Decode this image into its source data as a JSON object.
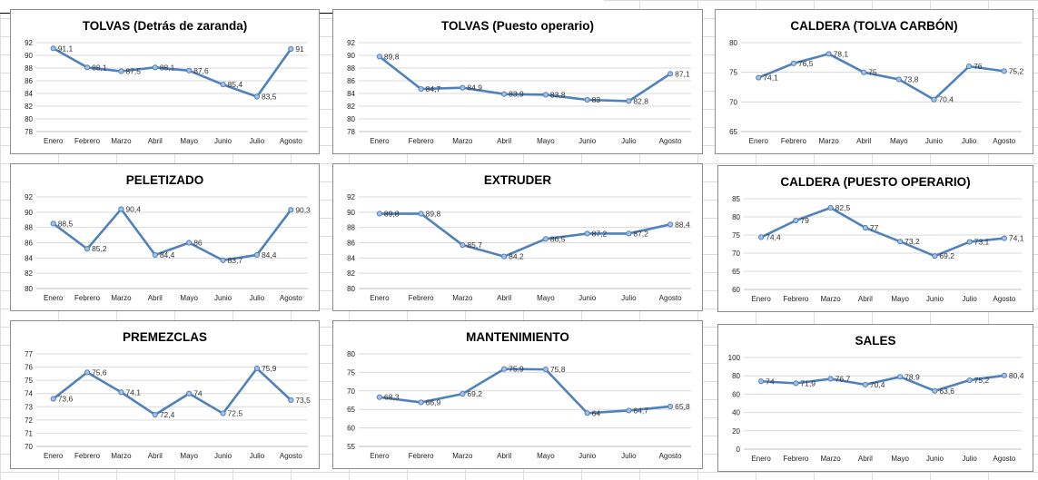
{
  "chart_data": [
    {
      "type": "line",
      "title": "TOLVAS (Detrás de zaranda)",
      "categories": [
        "Enero",
        "Febrero",
        "Marzo",
        "Abril",
        "Mayo",
        "Junio",
        "Julio",
        "Agosto"
      ],
      "values": [
        91.1,
        88.1,
        87.5,
        88.1,
        87.6,
        85.4,
        83.5,
        91
      ],
      "labels": [
        "91,1",
        "88,1",
        "87,5",
        "88,1",
        "87,6",
        "85,4",
        "83,5",
        "91"
      ],
      "ylim": [
        78,
        92
      ],
      "yticks": [
        "78",
        "80",
        "82",
        "84",
        "86",
        "88",
        "90",
        "92"
      ],
      "grid": true
    },
    {
      "type": "line",
      "title": "TOLVAS (Puesto operario)",
      "categories": [
        "Enero",
        "Febrero",
        "Marzo",
        "Abril",
        "Mayo",
        "Junio",
        "Julio",
        "Agosto"
      ],
      "values": [
        89.8,
        84.7,
        84.9,
        83.9,
        83.8,
        83,
        82.8,
        87.1
      ],
      "labels": [
        "89,8",
        "84,7",
        "84,9",
        "83,9",
        "83,8",
        "83",
        "82,8",
        "87,1"
      ],
      "ylim": [
        78,
        92
      ],
      "yticks": [
        "78",
        "80",
        "82",
        "84",
        "86",
        "88",
        "90",
        "92"
      ],
      "grid": true
    },
    {
      "type": "line",
      "title": "CALDERA (TOLVA CARBÓN)",
      "categories": [
        "Enero",
        "Febrero",
        "Marzo",
        "Abril",
        "Mayo",
        "Junio",
        "Julio",
        "Agosto"
      ],
      "values": [
        74.1,
        76.5,
        78.1,
        75,
        73.8,
        70.4,
        76,
        75.2
      ],
      "labels": [
        "74,1",
        "76,5",
        "78,1",
        "75",
        "73,8",
        "70,4",
        "76",
        "75,2"
      ],
      "ylim": [
        65,
        80
      ],
      "yticks": [
        "65",
        "70",
        "75",
        "80"
      ],
      "grid": true
    },
    {
      "type": "line",
      "title": "PELETIZADO",
      "categories": [
        "Enero",
        "Febrero",
        "Marzo",
        "Abril",
        "Mayo",
        "Junio",
        "Julio",
        "Agosto"
      ],
      "values": [
        88.5,
        85.2,
        90.4,
        84.4,
        86,
        83.7,
        84.4,
        90.3
      ],
      "labels": [
        "88,5",
        "85,2",
        "90,4",
        "84,4",
        "86",
        "83,7",
        "84,4",
        "90,3"
      ],
      "ylim": [
        80,
        92
      ],
      "yticks": [
        "80",
        "82",
        "84",
        "86",
        "88",
        "90",
        "92"
      ],
      "grid": true
    },
    {
      "type": "line",
      "title": "EXTRUDER",
      "categories": [
        "Enero",
        "Febrero",
        "Marzo",
        "Abril",
        "Mayo",
        "Junio",
        "Julio",
        "Agosto"
      ],
      "values": [
        89.8,
        89.8,
        85.7,
        84.2,
        86.5,
        87.2,
        87.2,
        88.4
      ],
      "labels": [
        "89,8",
        "89,8",
        "85,7",
        "84,2",
        "86,5",
        "87,2",
        "87,2",
        "88,4"
      ],
      "ylim": [
        80,
        92
      ],
      "yticks": [
        "80",
        "82",
        "84",
        "86",
        "88",
        "90",
        "92"
      ],
      "grid": true
    },
    {
      "type": "line",
      "title": "CALDERA (PUESTO OPERARIO)",
      "categories": [
        "Enero",
        "Febrero",
        "Marzo",
        "Abril",
        "Mayo",
        "Junio",
        "Julio",
        "Agosto"
      ],
      "values": [
        74.4,
        79,
        82.5,
        77,
        73.2,
        69.2,
        73.1,
        74.1
      ],
      "labels": [
        "74,4",
        "79",
        "82,5",
        "77",
        "73,2",
        "69,2",
        "73,1",
        "74,1"
      ],
      "ylim": [
        60,
        85
      ],
      "yticks": [
        "60",
        "65",
        "70",
        "75",
        "80",
        "85"
      ],
      "grid": true
    },
    {
      "type": "line",
      "title": "PREMEZCLAS",
      "categories": [
        "Enero",
        "Febrero",
        "Marzo",
        "Abril",
        "Mayo",
        "Junio",
        "Julio",
        "Agosto"
      ],
      "values": [
        73.6,
        75.6,
        74.1,
        72.4,
        74,
        72.5,
        75.9,
        73.5
      ],
      "labels": [
        "73,6",
        "75,6",
        "74,1",
        "72,4",
        "74",
        "72,5",
        "75,9",
        "73,5"
      ],
      "ylim": [
        70,
        77
      ],
      "yticks": [
        "70",
        "71",
        "72",
        "73",
        "74",
        "75",
        "76",
        "77"
      ],
      "grid": true
    },
    {
      "type": "line",
      "title": "MANTENIMIENTO",
      "categories": [
        "Enero",
        "Febrero",
        "Marzo",
        "Abril",
        "Mayo",
        "Junio",
        "Julio",
        "Agosto"
      ],
      "values": [
        68.3,
        66.9,
        69.2,
        75.9,
        75.8,
        64,
        64.7,
        65.8
      ],
      "labels": [
        "68,3",
        "66,9",
        "69,2",
        "75,9",
        "75,8",
        "64",
        "64,7",
        "65,8"
      ],
      "ylim": [
        55,
        80
      ],
      "yticks": [
        "55",
        "60",
        "65",
        "70",
        "75",
        "80"
      ],
      "grid": true
    },
    {
      "type": "line",
      "title": "SALES",
      "categories": [
        "Enero",
        "Febrero",
        "Marzo",
        "Abril",
        "Mayo",
        "Junio",
        "Julio",
        "Agosto"
      ],
      "values": [
        74,
        71.9,
        76.7,
        70.4,
        78.9,
        63.6,
        75.2,
        80.4
      ],
      "labels": [
        "74",
        "71,9",
        "76,7",
        "70,4",
        "78,9",
        "63,6",
        "75,2",
        "80,4"
      ],
      "ylim": [
        0,
        100
      ],
      "yticks": [
        "0",
        "20",
        "40",
        "60",
        "80",
        "100"
      ],
      "grid": true
    }
  ],
  "colors": {
    "line": "#4f81bd",
    "marker": "#a9c1e0"
  }
}
